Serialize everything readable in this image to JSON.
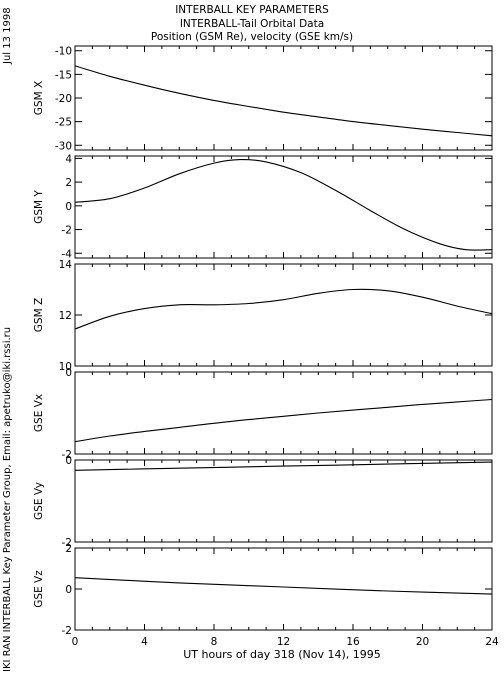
{
  "header": {
    "title_line1": "INTERBALL KEY PARAMETERS",
    "title_line2": "INTERBALL-Tail Orbital Data",
    "title_line3": "Position (GSM Re), velocity (GSE km/s)"
  },
  "sidebar": {
    "date": "Jul 13 1998",
    "credit": "IKI RAN INTERBALL Key Parameter Group, Email: apetruko@iki.rssi.ru"
  },
  "chart_data": {
    "type": "line",
    "xlabel": "UT hours of day 318 (Nov 14), 1995",
    "xlim": [
      0,
      24
    ],
    "xticks": [
      0,
      4,
      8,
      12,
      16,
      20,
      24
    ],
    "panels": [
      {
        "ylabel": "GSM X",
        "ylim": [
          -31,
          -9
        ],
        "yticks": [
          -10,
          -15,
          -20,
          -25,
          -30
        ],
        "x": [
          0,
          2,
          4,
          6,
          8,
          10,
          12,
          14,
          16,
          18,
          20,
          22,
          24
        ],
        "y": [
          -13.2,
          -15.4,
          -17.3,
          -19.0,
          -20.5,
          -21.8,
          -23.0,
          -24.0,
          -25.0,
          -25.8,
          -26.6,
          -27.3,
          -28.0
        ]
      },
      {
        "ylabel": "GSM Y",
        "ylim": [
          -4.4,
          4.2
        ],
        "yticks": [
          4,
          2,
          0,
          -2,
          -4
        ],
        "x": [
          0,
          2,
          4,
          6,
          8,
          9.5,
          11,
          13,
          15,
          17,
          19,
          21,
          22.5,
          24
        ],
        "y": [
          0.3,
          0.6,
          1.5,
          2.7,
          3.6,
          3.9,
          3.7,
          2.8,
          1.3,
          -0.4,
          -2.0,
          -3.2,
          -3.7,
          -3.7
        ]
      },
      {
        "ylabel": "GSM Z",
        "ylim": [
          10,
          14
        ],
        "yticks": [
          14,
          12,
          10
        ],
        "x": [
          0,
          2,
          4,
          6,
          8,
          10,
          12,
          14,
          16,
          18,
          20,
          22,
          24
        ],
        "y": [
          11.45,
          11.95,
          12.25,
          12.4,
          12.4,
          12.45,
          12.6,
          12.85,
          13.0,
          12.95,
          12.7,
          12.35,
          12.05
        ]
      },
      {
        "ylabel": "GSE Vx",
        "ylim": [
          -2,
          0
        ],
        "yticks": [
          0,
          -2
        ],
        "x": [
          0,
          2,
          4,
          6,
          8,
          10,
          12,
          14,
          16,
          18,
          20,
          22,
          24
        ],
        "y": [
          -1.7,
          -1.56,
          -1.45,
          -1.35,
          -1.25,
          -1.16,
          -1.08,
          -1.0,
          -0.93,
          -0.86,
          -0.79,
          -0.73,
          -0.67
        ]
      },
      {
        "ylabel": "GSE Vy",
        "ylim": [
          -2,
          0
        ],
        "yticks": [
          0,
          -2
        ],
        "x": [
          0,
          6,
          12,
          18,
          24
        ],
        "y": [
          -0.25,
          -0.2,
          -0.15,
          -0.1,
          -0.05
        ]
      },
      {
        "ylabel": "GSE Vz",
        "ylim": [
          -2,
          2
        ],
        "yticks": [
          2,
          0,
          -2
        ],
        "x": [
          0,
          6,
          12,
          18,
          24
        ],
        "y": [
          0.55,
          0.3,
          0.1,
          -0.1,
          -0.25
        ]
      }
    ]
  }
}
